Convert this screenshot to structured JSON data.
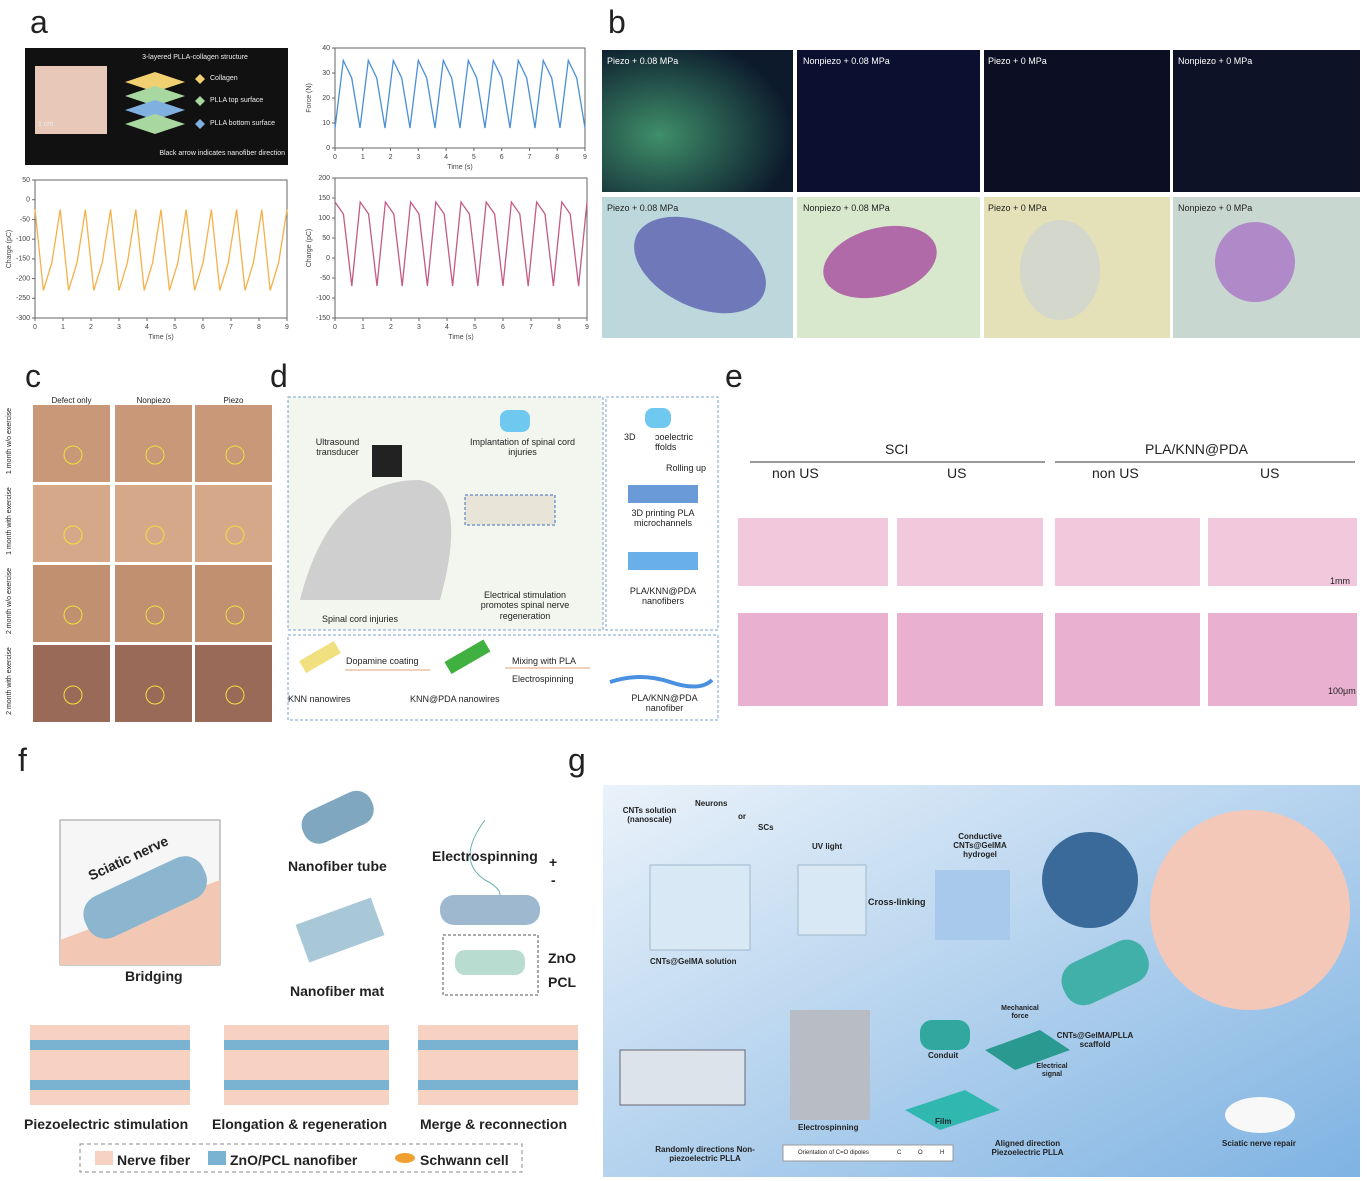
{
  "chart_data": [
    {
      "type": "line",
      "ylabel": "Force (N)",
      "xlabel": "Time (s)",
      "x": [
        0,
        0.3,
        0.6,
        0.9,
        1.2,
        1.5,
        1.8,
        2.1,
        2.4,
        2.7,
        3,
        3.3,
        3.6,
        3.9,
        4.2,
        4.5,
        4.8,
        5.1,
        5.4,
        5.7,
        6,
        6.3,
        6.6,
        6.9,
        7.2,
        7.5,
        7.8,
        8.1,
        8.4,
        8.7,
        9
      ],
      "series": [
        {
          "color": "#4a8fd6",
          "values": [
            8,
            35,
            28,
            8,
            35,
            28,
            8,
            35,
            28,
            8,
            35,
            28,
            8,
            35,
            28,
            8,
            35,
            28,
            8,
            35,
            28,
            8,
            35,
            28,
            8,
            35,
            28,
            8,
            35,
            28,
            8
          ]
        }
      ],
      "xlim": [
        0,
        9
      ],
      "ylim": [
        0,
        40
      ],
      "xticks": [
        0,
        1,
        2,
        3,
        4,
        5,
        6,
        7,
        8,
        9
      ],
      "yticks": [
        0,
        10,
        20,
        30,
        40
      ]
    },
    {
      "type": "line",
      "ylabel": "Charge (pC)",
      "xlabel": "Time (s)",
      "x": [
        0,
        0.3,
        0.6,
        0.9,
        1.2,
        1.5,
        1.8,
        2.1,
        2.4,
        2.7,
        3,
        3.3,
        3.6,
        3.9,
        4.2,
        4.5,
        4.8,
        5.1,
        5.4,
        5.7,
        6,
        6.3,
        6.6,
        6.9,
        7.2,
        7.5,
        7.8,
        8.1,
        8.4,
        8.7,
        9
      ],
      "series": [
        {
          "color": "#f5b04a",
          "values": [
            -25,
            -230,
            -160,
            -25,
            -230,
            -160,
            -25,
            -230,
            -160,
            -25,
            -230,
            -160,
            -25,
            -230,
            -160,
            -25,
            -230,
            -160,
            -25,
            -230,
            -160,
            -25,
            -230,
            -160,
            -25,
            -230,
            -160,
            -25,
            -230,
            -160,
            -25
          ]
        }
      ],
      "xlim": [
        0,
        9
      ],
      "ylim": [
        -300,
        50
      ],
      "xticks": [
        0,
        1,
        2,
        3,
        4,
        5,
        6,
        7,
        8,
        9
      ],
      "yticks": [
        -300,
        -250,
        -200,
        -150,
        -100,
        -50,
        0,
        50
      ]
    },
    {
      "type": "line",
      "ylabel": "Charge (pC)",
      "xlabel": "Time (s)",
      "x": [
        0,
        0.3,
        0.6,
        0.9,
        1.2,
        1.5,
        1.8,
        2.1,
        2.4,
        2.7,
        3,
        3.3,
        3.6,
        3.9,
        4.2,
        4.5,
        4.8,
        5.1,
        5.4,
        5.7,
        6,
        6.3,
        6.6,
        6.9,
        7.2,
        7.5,
        7.8,
        8.1,
        8.4,
        8.7,
        9
      ],
      "series": [
        {
          "color": "#c45a86",
          "values": [
            140,
            110,
            -70,
            140,
            110,
            -70,
            140,
            110,
            -70,
            140,
            110,
            -70,
            140,
            110,
            -70,
            140,
            110,
            -70,
            140,
            110,
            -70,
            140,
            110,
            -70,
            140,
            110,
            -70,
            140,
            110,
            -70,
            140
          ]
        }
      ],
      "xlim": [
        0,
        9
      ],
      "ylim": [
        -150,
        200
      ],
      "xticks": [
        0,
        1,
        2,
        3,
        4,
        5,
        6,
        7,
        8,
        9
      ],
      "yticks": [
        -150,
        -100,
        -50,
        0,
        50,
        100,
        150,
        200
      ]
    }
  ],
  "panels": {
    "a": {
      "label": "a",
      "texts": [
        "3-layered PLLA-collagen structure",
        "Collagen",
        "PLLA top surface",
        "PLLA bottom surface",
        "1 cm",
        "Black arrow indicates nanofiber direction"
      ]
    },
    "b": {
      "label": "b",
      "texts": [
        "Piezo + 0.08 MPa",
        "Nonpiezo + 0.08 MPa",
        "Piezo + 0 MPa",
        "Nonpiezo + 0 MPa",
        "Piezo + 0.08 MPa",
        "Nonpiezo + 0.08 MPa",
        "Piezo + 0 MPa",
        "Nonpiezo + 0 MPa"
      ]
    },
    "c": {
      "label": "c",
      "columns": [
        "Defect only",
        "Nonpiezo",
        "Piezo"
      ],
      "rows": [
        "1 month w/o exercise",
        "1 month with exercise",
        "2 month w/o exercise",
        "2 month with exercise"
      ]
    },
    "d": {
      "label": "d",
      "texts": [
        "Ultrasound transducer",
        "Implantation of spinal cord injuries",
        "Spinal cord injuries",
        "Electrical stimulation promotes spinal nerve regeneration",
        "3D",
        "ɔoelectric ffolds",
        "Rolling up",
        "3D printing PLA microchannels",
        "PLA/KNN@PDA nanofibers",
        "KNN nanowires",
        "Dopamine coating",
        "KNN@PDA nanowires",
        "Mixing with PLA",
        "Electrospinning",
        "PLA/KNN@PDA nanofiber"
      ]
    },
    "e": {
      "label": "e",
      "groups": [
        "SCI",
        "PLA/KNN@PDA"
      ],
      "conditions": [
        "non US",
        "US",
        "non US",
        "US"
      ],
      "scale_bars": [
        "1mm",
        "100μm"
      ]
    },
    "f": {
      "label": "f",
      "texts": [
        "Sciatic nerve",
        "Bridging",
        "Nanofiber tube",
        "Nanofiber mat",
        "Electrospinning",
        "ZnO",
        "PCL",
        "+",
        "-"
      ],
      "stages": [
        "Piezoelectric stimulation",
        "Elongation & regeneration",
        "Merge & reconnection"
      ],
      "legend": [
        "Nerve fiber",
        "ZnO/PCL nanofiber",
        "Schwann cell"
      ]
    },
    "g": {
      "label": "g",
      "texts": [
        "CNTs solution (nanoscale)",
        "Neurons",
        "or",
        "SCs",
        "UV light",
        "Cross-linking",
        "Conductive CNTs@GelMA hydrogel",
        "CNTs@GelMA solution",
        "Conduit",
        "Mechanical force",
        "Electrical signal",
        "CNTs@GelMA/PLLA scaffold",
        "Film",
        "Electrospinning",
        "Randomly directions Non-piezoelectric PLLA",
        "Aligned direction Piezoelectric PLLA",
        "Sciatic nerve repair",
        "Orientation of C=O dipoles",
        "C",
        "O",
        "H"
      ]
    }
  }
}
